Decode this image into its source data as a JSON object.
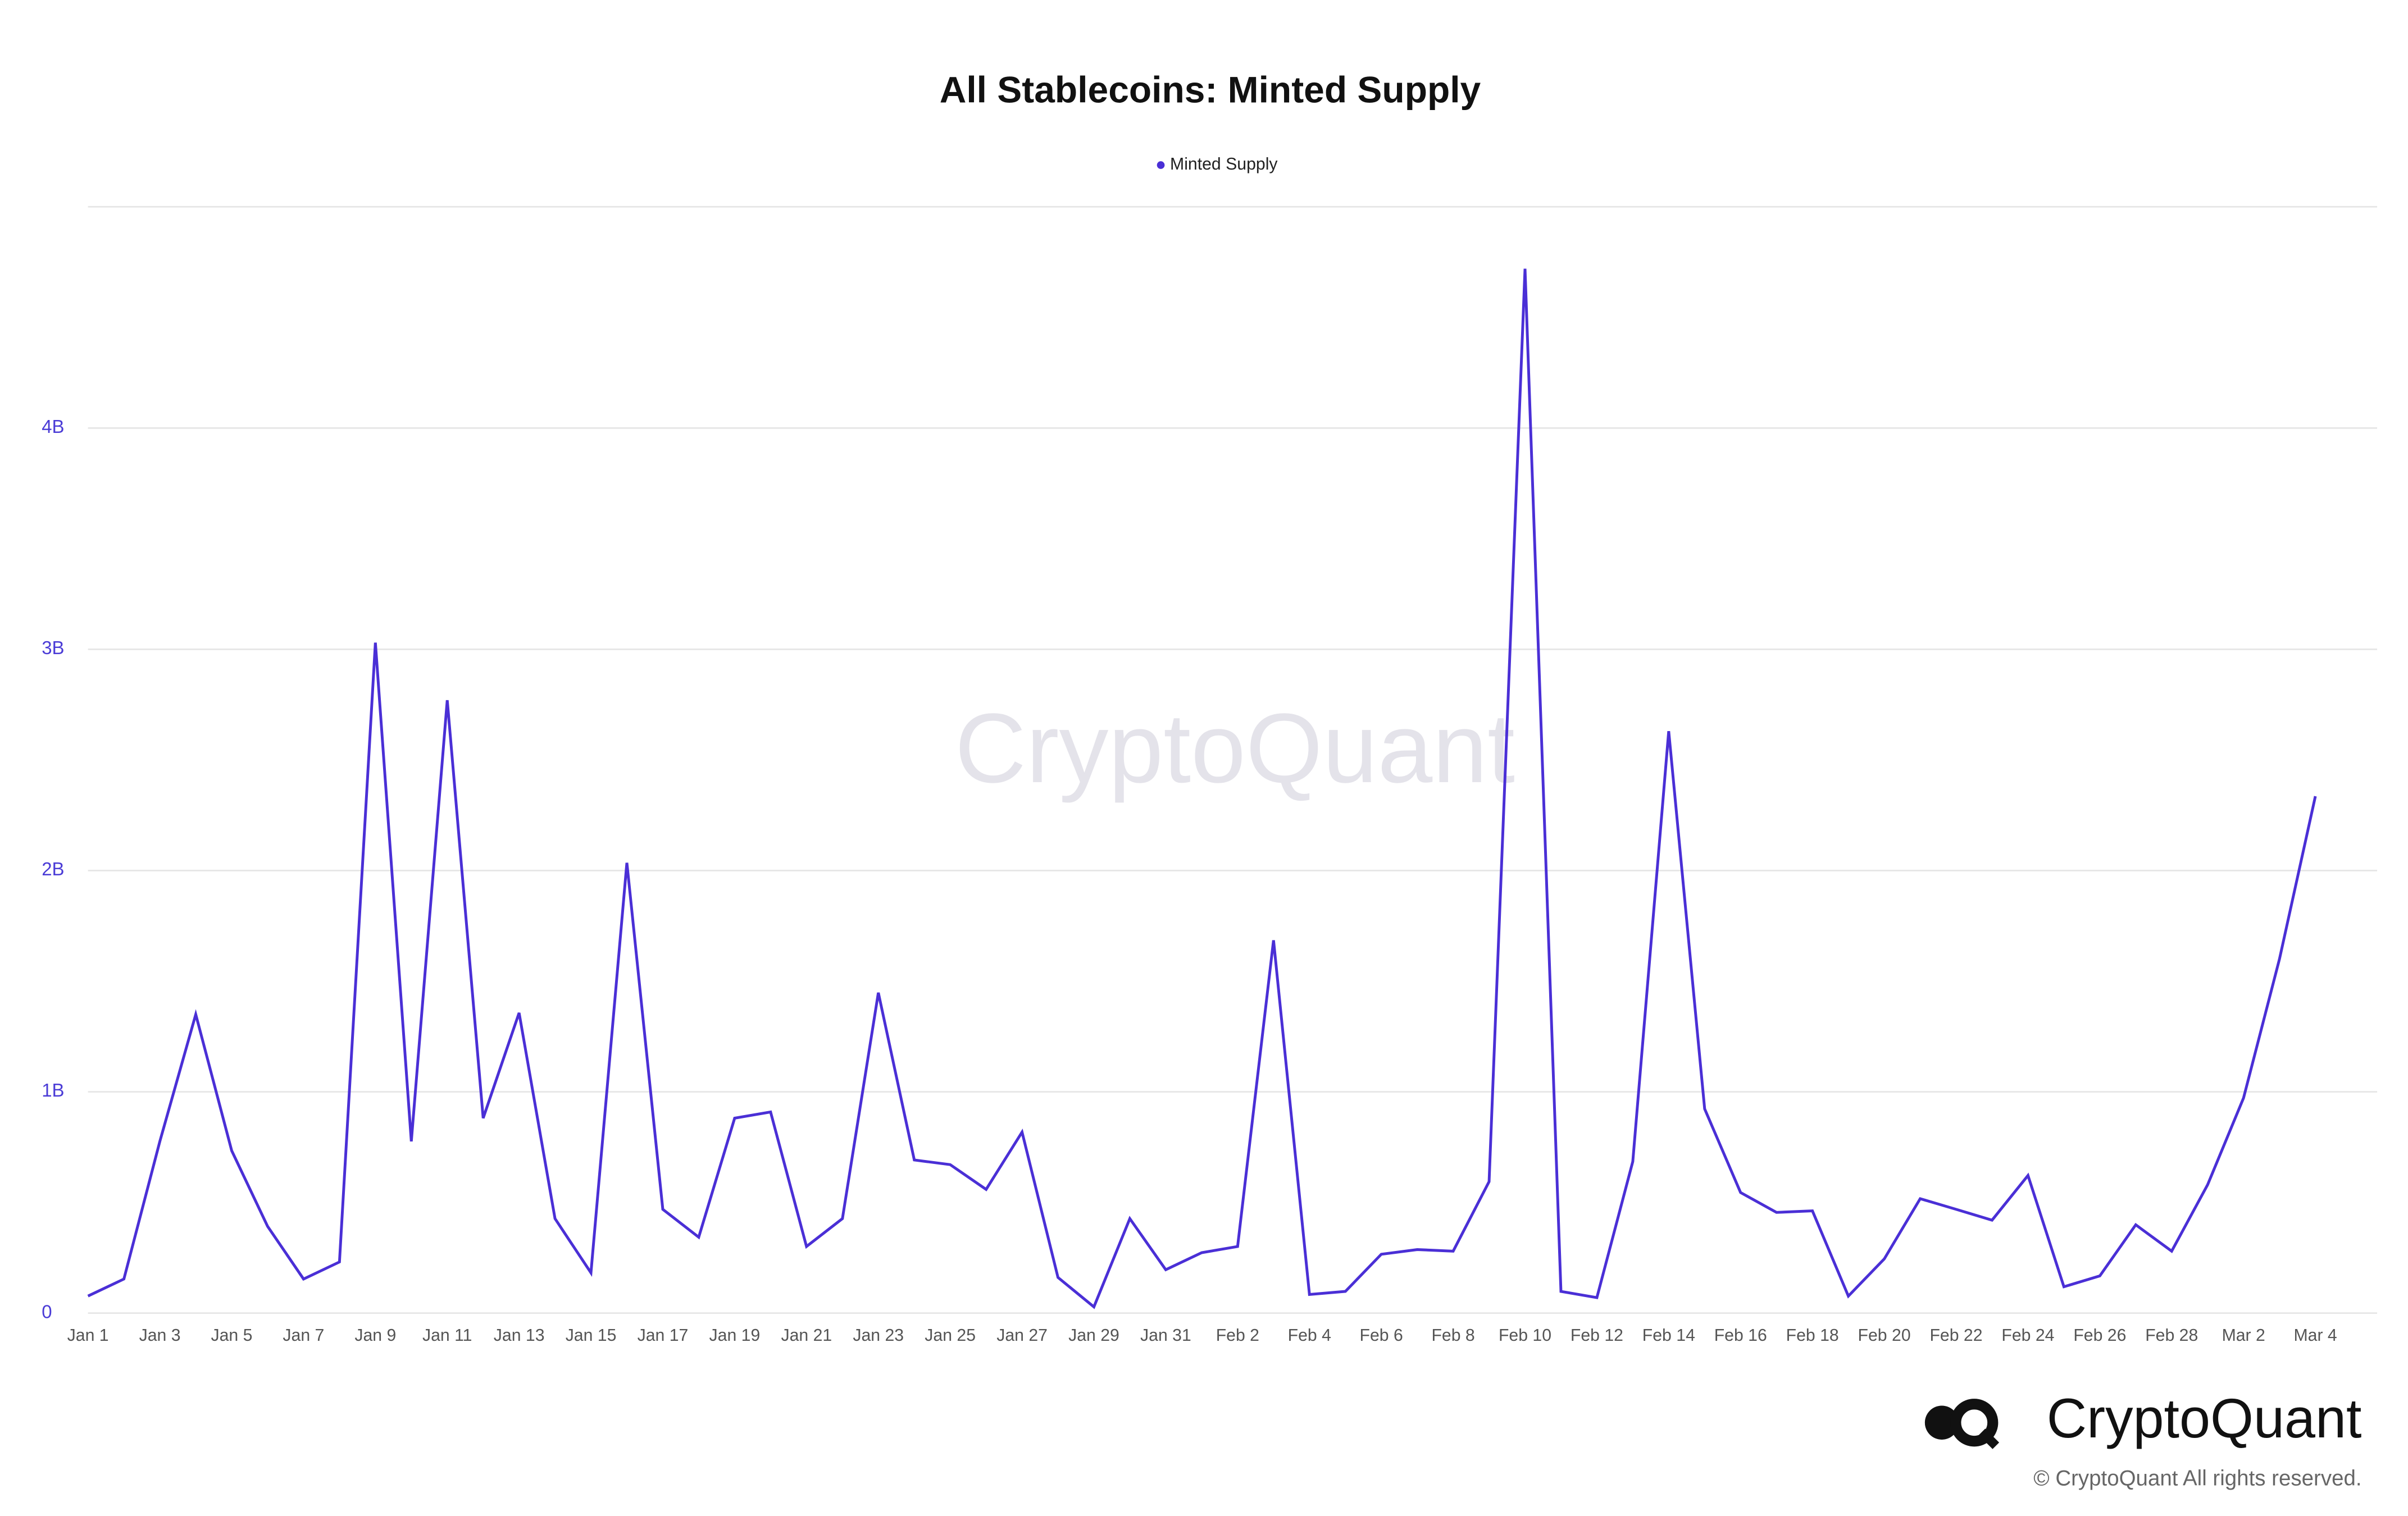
{
  "chart_data": {
    "type": "line",
    "title": "All Stablecoins: Minted Supply",
    "watermark": "CryptoQuant",
    "brand": "CryptoQuant",
    "copyright": "© CryptoQuant All rights reserved.",
    "categories": [
      "Jan 1",
      null,
      "Jan 3",
      null,
      "Jan 5",
      null,
      "Jan 7",
      null,
      "Jan 9",
      null,
      "Jan 11",
      null,
      "Jan 13",
      null,
      "Jan 15",
      null,
      "Jan 17",
      null,
      "Jan 19",
      null,
      "Jan 21",
      null,
      "Jan 23",
      null,
      "Jan 25",
      null,
      "Jan 27",
      null,
      "Jan 29",
      null,
      "Jan 31",
      null,
      "Feb 2",
      null,
      "Feb 4",
      null,
      "Feb 6",
      null,
      "Feb 8",
      null,
      "Feb 10",
      null,
      "Feb 12",
      null,
      "Feb 14",
      null,
      "Feb 16",
      null,
      "Feb 18",
      null,
      "Feb 20",
      null,
      "Feb 22",
      null,
      "Feb 24",
      null,
      "Feb 26",
      null,
      "Feb 28",
      null,
      "Mar 2",
      null,
      "Mar 4"
    ],
    "series": [
      {
        "name": "Minted Supply",
        "color": "#4a2fd6",
        "values": [
          77000000,
          154000000,
          776000000,
          1350000000,
          734000000,
          392000000,
          154000000,
          231000000,
          3030000000,
          776000000,
          2770000000,
          881000000,
          1357000000,
          427000000,
          182000000,
          2035000000,
          469000000,
          343000000,
          881000000,
          909000000,
          301000000,
          427000000,
          1448000000,
          692000000,
          671000000,
          559000000,
          818000000,
          161000000,
          28000000,
          427000000,
          196000000,
          273000000,
          301000000,
          1685000000,
          84000000,
          98000000,
          266000000,
          287000000,
          280000000,
          594000000,
          4720000000,
          98000000,
          70000000,
          685000000,
          2630000000,
          923000000,
          545000000,
          455000000,
          462000000,
          77000000,
          245000000,
          517000000,
          469000000,
          420000000,
          622000000,
          119000000,
          168000000,
          399000000,
          280000000,
          580000000,
          972000000,
          1600000000,
          2336000000
        ]
      }
    ],
    "ylim": [
      0,
      5000000000
    ],
    "yticks": [
      0,
      {
        "value": 1000000000,
        "label": "1B"
      },
      {
        "value": 2000000000,
        "label": "2B"
      },
      {
        "value": 3000000000,
        "label": "3B"
      },
      {
        "value": 4000000000,
        "label": "4B"
      }
    ],
    "grid": true,
    "legend": "top"
  }
}
